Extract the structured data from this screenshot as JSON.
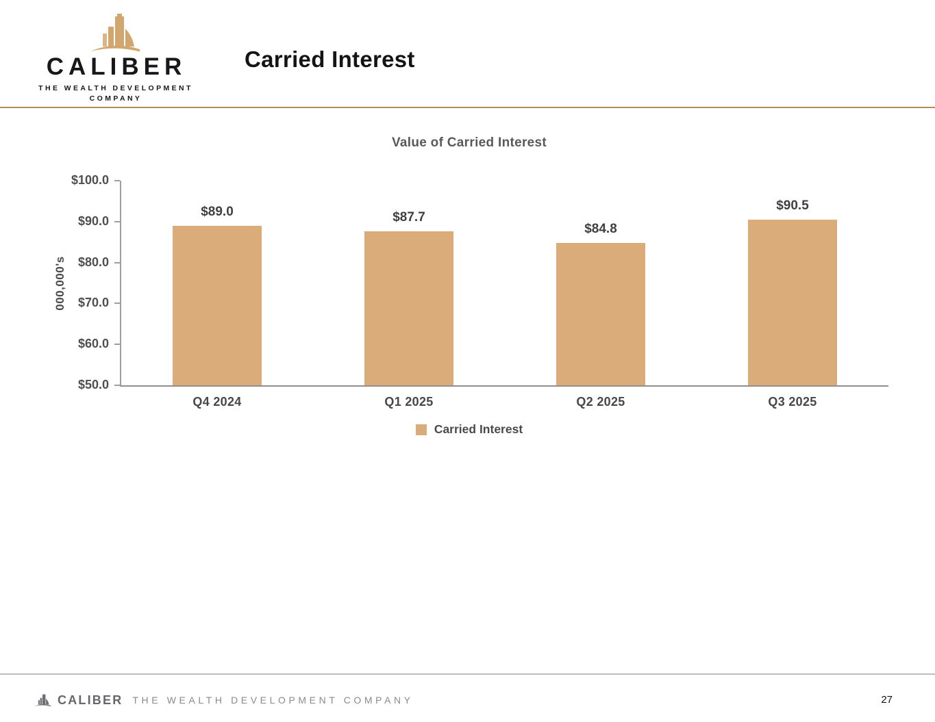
{
  "header": {
    "logo": {
      "brand": "CALIBER",
      "tagline_line1": "THE WEALTH DEVELOPMENT",
      "tagline_line2": "COMPANY"
    },
    "title": "Carried Interest"
  },
  "chart_data": {
    "type": "bar",
    "title": "Value of Carried Interest",
    "categories": [
      "Q4 2024",
      "Q1 2025",
      "Q2 2025",
      "Q3 2025"
    ],
    "values": [
      89.0,
      87.7,
      84.8,
      90.5
    ],
    "value_labels": [
      "$89.0",
      "$87.7",
      "$84.8",
      "$90.5"
    ],
    "series_name": "Carried Interest",
    "ylabel": "000,000's",
    "ylim": [
      50,
      100
    ],
    "yticks": [
      "$100.0",
      "$90.0",
      "$80.0",
      "$70.0",
      "$60.0",
      "$50.0"
    ],
    "bar_color": "#D9AC79",
    "grid": false,
    "legend_position": "bottom",
    "legend_label": "Carried Interest"
  },
  "footer": {
    "brand": "CALIBER",
    "tagline": "THE WEALTH DEVELOPMENT COMPANY",
    "page_number": "27"
  },
  "colors": {
    "accent_gold": "#D9AC79",
    "logo_gold": "#D2A76F",
    "header_rule": "#B5895A",
    "footer_rule": "#BDBDBD",
    "axis_line": "#9E9E9E"
  }
}
